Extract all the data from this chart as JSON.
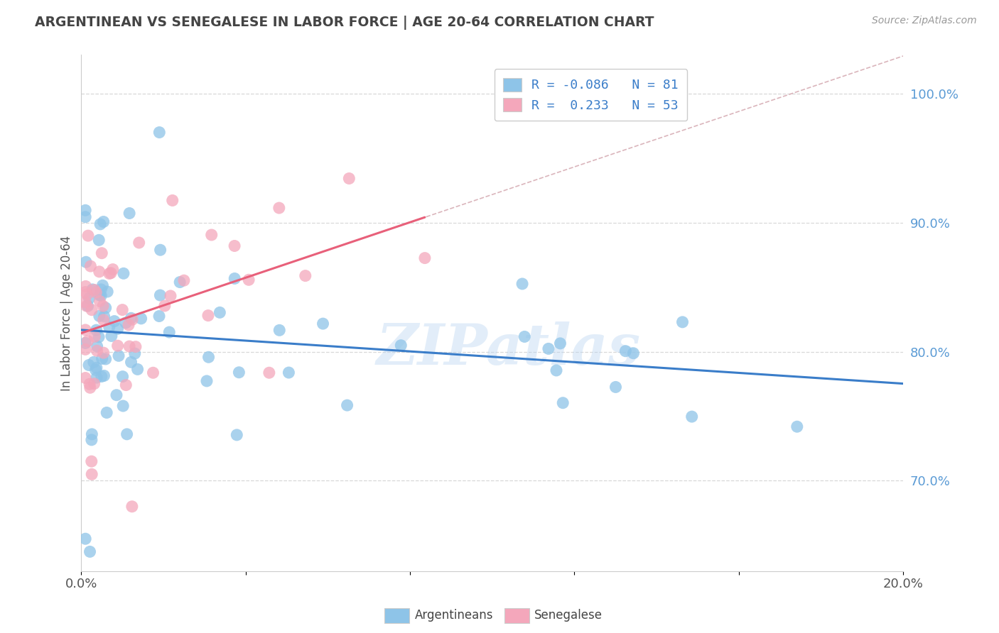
{
  "title": "ARGENTINEAN VS SENEGALESE IN LABOR FORCE | AGE 20-64 CORRELATION CHART",
  "source_text": "Source: ZipAtlas.com",
  "ylabel": "In Labor Force | Age 20-64",
  "xlim": [
    0.0,
    0.2
  ],
  "ylim": [
    0.63,
    1.03
  ],
  "legend_r1": "R = -0.086",
  "legend_n1": "N = 81",
  "legend_r2": "R =  0.233",
  "legend_n2": "N = 53",
  "blue_color": "#8ec4e8",
  "pink_color": "#f4a7bb",
  "blue_line_color": "#3a7dc9",
  "pink_line_color": "#e8607a",
  "diag_line_color": "#d4a8b0",
  "watermark": "ZIPatlas",
  "background_color": "#ffffff",
  "plot_bg_color": "#ffffff",
  "grid_color": "#d8d8d8",
  "y_tick_vals": [
    0.7,
    0.8,
    0.9,
    1.0
  ],
  "y_tick_labels": [
    "70.0%",
    "80.0%",
    "90.0%",
    "100.0%"
  ],
  "y_tick_color": "#5b9bd5",
  "title_color": "#444444",
  "title_fontsize": 13.5
}
